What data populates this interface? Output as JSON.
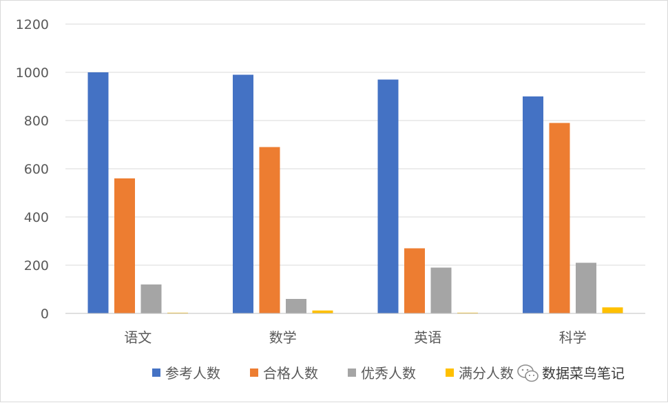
{
  "chart_data": {
    "type": "bar",
    "categories": [
      "语文",
      "数学",
      "英语",
      "科学"
    ],
    "series": [
      {
        "name": "参考人数",
        "color": "#4472C4",
        "values": [
          1000,
          990,
          970,
          900
        ]
      },
      {
        "name": "合格人数",
        "color": "#ED7D31",
        "values": [
          560,
          690,
          270,
          790
        ]
      },
      {
        "name": "优秀人数",
        "color": "#A5A5A5",
        "values": [
          120,
          60,
          190,
          210
        ]
      },
      {
        "name": "满分人数",
        "color": "#FFC000",
        "values": [
          3,
          12,
          3,
          25
        ]
      }
    ],
    "yticks": [
      "0",
      "200",
      "400",
      "600",
      "800",
      "1000",
      "1200"
    ],
    "ylim": [
      0,
      1200
    ],
    "grid": true,
    "legend_position": "bottom"
  },
  "watermark": {
    "icon": "wechat-icon",
    "text": "数据菜鸟笔记"
  }
}
